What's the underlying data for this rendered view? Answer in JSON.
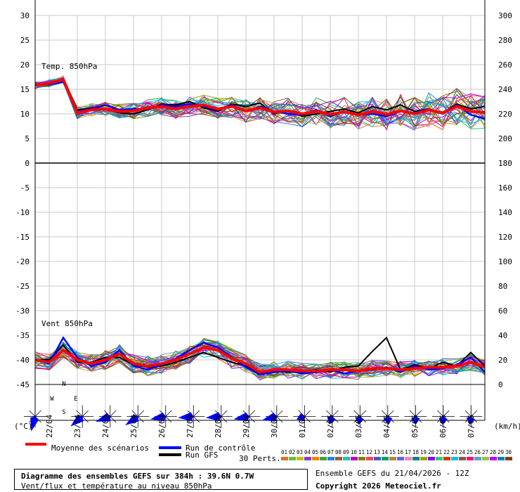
{
  "chart_data": {
    "type": "line",
    "title": "Diagramme des ensembles GEFS sur 384h : 39.6N 0.7W",
    "subtitle": "Vent/flux et température au niveau 850hPa",
    "run_info": "Ensemble GEFS du 21/04/2026 - 12Z",
    "copyright": "Copyright 2026 Meteociel.fr",
    "left_unit": "(°C)",
    "right_unit": "(km/h)",
    "left_ticks": [
      30,
      25,
      20,
      15,
      10,
      5,
      0,
      -5,
      -10,
      -15,
      -20,
      -25,
      -30,
      -35,
      -40,
      -45
    ],
    "right_ticks": [
      300,
      280,
      260,
      240,
      220,
      200,
      180,
      160,
      140,
      120,
      100,
      80,
      60,
      40,
      20,
      0
    ],
    "ylim": [
      -45,
      30
    ],
    "ylim_right": [
      0,
      300
    ],
    "dates": [
      "22/04",
      "23/04",
      "24/04",
      "25/04",
      "26/04",
      "27/04",
      "28/04",
      "29/04",
      "30/04",
      "01/05",
      "02/05",
      "03/05",
      "04/05",
      "05/05",
      "06/05",
      "07/05"
    ],
    "panels": [
      {
        "label": "Temp. 850hPa",
        "axis": "left",
        "unit": "°C"
      },
      {
        "label": "Vent 850hPa",
        "axis": "right",
        "unit": "km/h"
      }
    ],
    "x_hours": [
      0,
      12,
      24,
      36,
      48,
      60,
      72,
      84,
      96,
      108,
      120,
      132,
      144,
      156,
      168,
      180,
      192,
      204,
      216,
      228,
      240,
      252,
      264,
      276,
      288,
      300,
      312,
      324,
      336,
      348,
      360,
      372,
      384
    ],
    "temp_mean": [
      15.8,
      16.2,
      17.0,
      10.2,
      10.8,
      11.0,
      10.5,
      10.6,
      11.2,
      11.5,
      11.0,
      11.5,
      11.8,
      11.0,
      11.5,
      10.6,
      11.2,
      10.4,
      10.6,
      10.0,
      10.5,
      9.9,
      10.4,
      9.8,
      10.5,
      9.9,
      10.6,
      10.0,
      10.8,
      10.2,
      11.5,
      10.5,
      10.3
    ],
    "temp_control": [
      15.8,
      16.0,
      16.5,
      10.5,
      11.0,
      11.8,
      10.8,
      11.0,
      11.0,
      11.8,
      11.5,
      12.0,
      11.5,
      10.8,
      11.8,
      10.5,
      11.5,
      10.5,
      10.0,
      9.8,
      10.8,
      9.5,
      10.5,
      9.8,
      10.0,
      9.5,
      10.5,
      10.2,
      11.0,
      10.0,
      11.8,
      9.8,
      9.0
    ],
    "temp_gfs": [
      15.8,
      16.1,
      17.2,
      10.8,
      11.2,
      11.0,
      10.2,
      10.0,
      10.8,
      12.0,
      11.8,
      12.5,
      11.2,
      10.5,
      12.0,
      11.5,
      12.2,
      10.0,
      10.8,
      9.5,
      10.0,
      10.5,
      11.0,
      10.2,
      11.5,
      10.8,
      11.8,
      10.5,
      11.0,
      10.2,
      12.0,
      11.0,
      11.5
    ],
    "wind_mean": [
      20,
      18,
      28,
      20,
      17,
      20,
      25,
      17,
      15,
      17,
      20,
      25,
      30,
      28,
      21,
      17,
      10,
      12,
      12,
      11,
      11,
      12,
      12,
      11,
      13,
      13,
      12,
      13,
      14,
      14,
      15,
      18,
      14
    ],
    "wind_control": [
      20,
      17,
      38,
      22,
      15,
      18,
      28,
      15,
      12,
      16,
      21,
      28,
      34,
      30,
      22,
      14,
      8,
      10,
      11,
      9,
      10,
      12,
      9,
      11,
      12,
      14,
      10,
      15,
      12,
      13,
      16,
      22,
      10
    ],
    "wind_gfs": [
      20,
      20,
      32,
      18,
      18,
      22,
      22,
      16,
      14,
      15,
      18,
      22,
      26,
      22,
      18,
      15,
      9,
      11,
      10,
      10,
      12,
      10,
      14,
      15,
      27,
      38,
      12,
      16,
      13,
      18,
      15,
      26,
      15
    ],
    "series": [
      {
        "name": "Moyenne des scénarios",
        "color": "#ff0000"
      },
      {
        "name": "Run de contrôle",
        "color": "#0000ff"
      },
      {
        "name": "Run GFS",
        "color": "#000000"
      }
    ],
    "perturbations": {
      "label": "30 Perts.",
      "members": [
        "01",
        "02",
        "03",
        "04",
        "05",
        "06",
        "07",
        "08",
        "09",
        "10",
        "11",
        "12",
        "13",
        "14",
        "15",
        "16",
        "17",
        "18",
        "19",
        "20",
        "21",
        "22",
        "23",
        "24",
        "25",
        "26",
        "27",
        "28",
        "29",
        "30"
      ],
      "colors": [
        "#e07020",
        "#60c040",
        "#c0c000",
        "#8040c0",
        "#ff8000",
        "#40a040",
        "#2080ff",
        "#a06020",
        "#20c0c0",
        "#c000c0",
        "#808000",
        "#ff4060",
        "#4060c0",
        "#00a060",
        "#c08040",
        "#6060ff",
        "#ff80c0",
        "#008080",
        "#a0a000",
        "#8000ff",
        "#40c080",
        "#c04000",
        "#00c0ff",
        "#806040",
        "#ff0080",
        "#60a0c0",
        "#a0c040",
        "#c000ff",
        "#0080c0",
        "#804000"
      ]
    },
    "wind_rose_dirs": [
      195,
      230,
      250,
      235,
      260,
      265,
      265,
      260,
      255,
      250,
      200,
      190,
      175,
      180,
      185,
      190
    ],
    "wind_rose_compass": {
      "n": "N",
      "s": "S",
      "e": "E",
      "w": "W"
    },
    "grid": true
  }
}
